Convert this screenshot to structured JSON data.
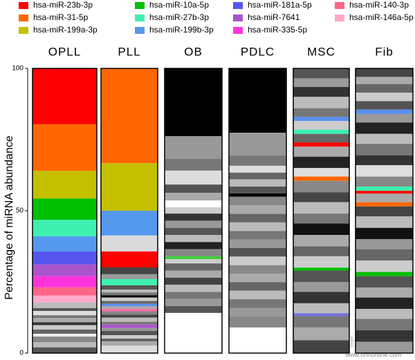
{
  "chart_data": {
    "type": "stacked-bar",
    "y_label": "Percentage of miRNA abundance",
    "ylim": [
      0,
      100
    ],
    "yticks": [
      0,
      50,
      100
    ],
    "categories": [
      "OPLL",
      "PLL",
      "OB",
      "PDLC",
      "MSC",
      "Fib"
    ],
    "series": [
      {
        "name": "hsa-miR-23b-3p",
        "color": "#ff0000"
      },
      {
        "name": "hsa-miR-31-5p",
        "color": "#ff6600"
      },
      {
        "name": "hsa-miR-199a-3p",
        "color": "#c4c000"
      },
      {
        "name": "hsa-miR-10a-5p",
        "color": "#00c000"
      },
      {
        "name": "hsa-miR-27b-3p",
        "color": "#3ef0b0"
      },
      {
        "name": "hsa-miR-199b-3p",
        "color": "#5599ee"
      },
      {
        "name": "hsa-miR-181a-5p",
        "color": "#5555ee"
      },
      {
        "name": "hsa-miR-7641",
        "color": "#aa55cc"
      },
      {
        "name": "hsa-miR-335-5p",
        "color": "#ff33dd"
      },
      {
        "name": "hsa-miR-140-3p",
        "color": "#ff6688"
      },
      {
        "name": "hsa-miR-146a-5p",
        "color": "#ffaacc"
      }
    ],
    "stacks": [
      {
        "values": [
          19.7,
          16.3,
          9.7,
          7.5,
          5.8,
          5.3,
          4.6,
          4.1,
          3.9,
          2.9,
          2.4,
          2,
          1,
          1.5,
          1,
          1.5,
          1,
          1.5,
          1.5,
          1,
          2,
          1.8,
          2
        ],
        "colors": [
          "#ff0000",
          "#ff6600",
          "#c4c000",
          "#00c000",
          "#3ef0b0",
          "#5599ee",
          "#5555ee",
          "#aa55cc",
          "#ff33dd",
          "#ff6688",
          "#ffaacc",
          "#bbb",
          "#555",
          "#ddd",
          "#777",
          "#aaa",
          "#333",
          "#ccc",
          "#666",
          "#eee",
          "#888",
          "#bbb",
          "#555"
        ]
      },
      {
        "values": [
          33.3,
          16.7,
          8.7,
          5.6,
          5.6,
          2.4,
          1.7,
          2.2,
          1.5,
          1,
          1,
          0.8,
          1.2,
          1,
          0.8,
          1,
          0.8,
          1.2,
          1,
          1.5,
          1,
          1.2,
          1,
          1.5,
          1.2,
          1,
          1.5,
          2.6
        ],
        "colors": [
          "#ff6600",
          "#c4c000",
          "#5599ee",
          "#dadada",
          "#ff0000",
          "#444",
          "#999",
          "#3ef0b0",
          "#555",
          "#bbb",
          "#777",
          "#000",
          "#ccc",
          "#666",
          "#5b8fef",
          "#aaa",
          "#ff66aa",
          "#888",
          "#444",
          "#bbb",
          "#777",
          "#aa55cc",
          "#999",
          "#555",
          "#ccc",
          "#666",
          "#aaa",
          "#ddd"
        ]
      },
      {
        "values": [
          23.8,
          8,
          4.1,
          4.9,
          2.9,
          2.7,
          2.4,
          2.2,
          2.5,
          2.5,
          2.5,
          2.5,
          2.5,
          2.5,
          1,
          1.5,
          2.5,
          2.5,
          2.5,
          2.5,
          2.5,
          2.5,
          2.4,
          14.1
        ],
        "colors": [
          "#000",
          "#999",
          "#777",
          "#ddd",
          "#555",
          "#aaa",
          "#fff",
          "#ccc",
          "#333",
          "#999",
          "#555",
          "#bbb",
          "#222",
          "#888",
          "#40d040",
          "#ccc",
          "#666",
          "#aaa",
          "#444",
          "#bbb",
          "#777",
          "#999",
          "#555",
          "#fff"
        ]
      },
      {
        "values": [
          22.6,
          8,
          3.6,
          2.4,
          2.4,
          2.5,
          2.4,
          1.2,
          3,
          3,
          3,
          3,
          3,
          3,
          3,
          3,
          3,
          3,
          3,
          3,
          3,
          3,
          3.9,
          9
        ],
        "colors": [
          "#000",
          "#999",
          "#777",
          "#ddd",
          "#666",
          "#bbb",
          "#555",
          "#000",
          "#888",
          "#aaa",
          "#666",
          "#bbb",
          "#777",
          "#999",
          "#555",
          "#ccc",
          "#888",
          "#aaa",
          "#666",
          "#bbb",
          "#777",
          "#999",
          "#888",
          "#fff"
        ]
      },
      {
        "values": [
          3.5,
          3,
          3.5,
          4,
          3,
          1.5,
          3,
          1.5,
          3,
          1.5,
          3.5,
          4,
          3,
          1.5,
          4,
          3.5,
          4,
          3.5,
          4,
          4,
          3.5,
          4,
          1,
          4,
          3.5,
          4,
          3.5,
          1,
          4,
          4.5,
          4.5
        ],
        "colors": [
          "#555",
          "#999",
          "#333",
          "#bbb",
          "#777",
          "#5b8fef",
          "#ccc",
          "#3ef0b0",
          "#666",
          "#ff0000",
          "#aaa",
          "#222",
          "#ddd",
          "#ff6600",
          "#888",
          "#444",
          "#bbb",
          "#777",
          "#111",
          "#aaa",
          "#666",
          "#ccc",
          "#00c000",
          "#555",
          "#999",
          "#333",
          "#bbb",
          "#7070e0",
          "#777",
          "#aaa",
          "#444"
        ]
      },
      {
        "values": [
          3,
          2.5,
          3,
          3,
          3,
          1.5,
          3,
          4,
          3.5,
          4,
          3.5,
          4,
          3.5,
          1.5,
          1,
          3,
          1.5,
          3.5,
          4,
          4,
          3.5,
          4,
          4,
          1.5,
          4,
          3.5,
          4,
          3.5,
          4,
          4,
          4
        ],
        "colors": [
          "#444",
          "#aaa",
          "#666",
          "#ccc",
          "#555",
          "#5b8fef",
          "#999",
          "#222",
          "#bbb",
          "#777",
          "#333",
          "#ddd",
          "#888",
          "#3ef0b0",
          "#ff0000",
          "#aaa",
          "#ff6600",
          "#444",
          "#bbb",
          "#111",
          "#999",
          "#666",
          "#ccc",
          "#00c000",
          "#555",
          "#aaa",
          "#222",
          "#bbb",
          "#777",
          "#333",
          "#999"
        ]
      }
    ],
    "watermark": "orthonline",
    "watermark_url": "www.orthonline.com"
  }
}
